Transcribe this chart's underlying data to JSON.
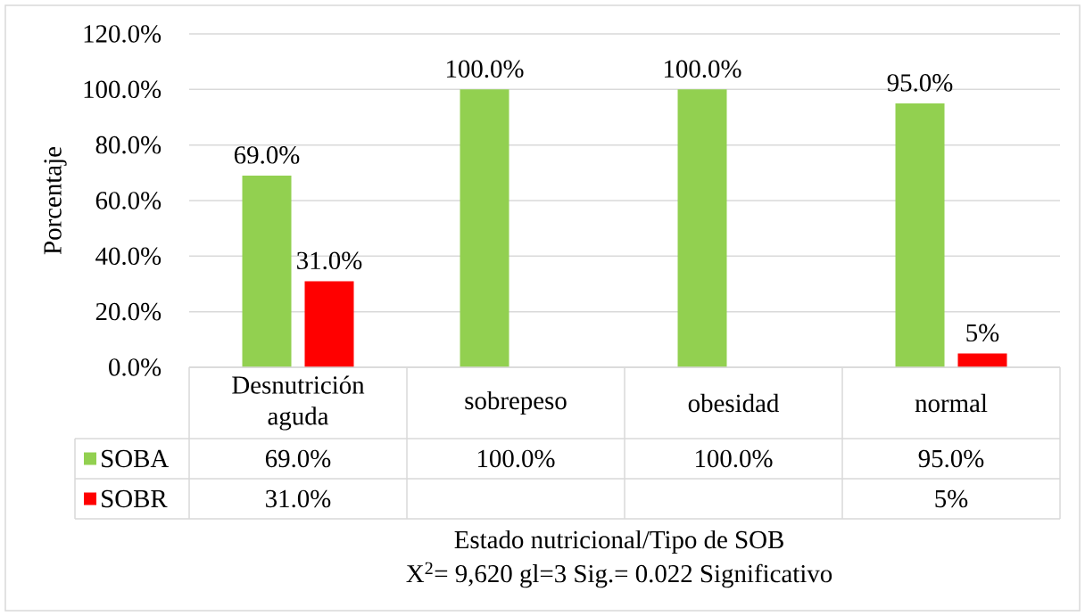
{
  "chart_data": {
    "type": "bar",
    "ylabel": "Porcentaje",
    "xlabel": "Estado nutricional/Tipo de SOB",
    "annotations": [
      "X$^{2}$= 9,620 gl=3 Sig.= 0.022 Significativo"
    ],
    "categories": [
      "Desnutrición aguda",
      "sobrepeso",
      "obesidad",
      "normal"
    ],
    "series": [
      {
        "name": "SOBA",
        "color": "#92d050",
        "values": [
          69,
          100,
          100,
          95
        ],
        "value_labels": [
          "69.0%",
          "100.0%",
          "100.0%",
          "95.0%"
        ]
      },
      {
        "name": "SOBR",
        "color": "#ff0000",
        "values": [
          31,
          null,
          null,
          5
        ],
        "value_labels": [
          "31.0%",
          null,
          null,
          "5%"
        ]
      }
    ],
    "ylim": [
      0,
      120
    ],
    "yticks": [
      {
        "value": 0,
        "label": "0.0%"
      },
      {
        "value": 20,
        "label": "20.0%"
      },
      {
        "value": 40,
        "label": "40.0%"
      },
      {
        "value": 60,
        "label": "60.0%"
      },
      {
        "value": 80,
        "label": "80.0%"
      },
      {
        "value": 100,
        "label": "100.0%"
      },
      {
        "value": 120,
        "label": "120.0%"
      }
    ],
    "grid": "y",
    "legend": "bottom"
  }
}
